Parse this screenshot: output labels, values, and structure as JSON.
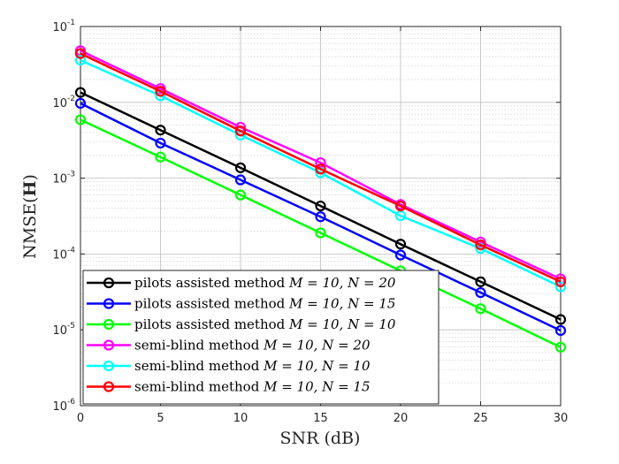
{
  "chart_data": {
    "type": "line",
    "xscale": "linear",
    "yscale": "log",
    "x": [
      0,
      5,
      10,
      15,
      20,
      25,
      30
    ],
    "xlim": [
      0,
      30
    ],
    "ylim": [
      1e-06,
      0.1
    ],
    "xticks": [
      0,
      5,
      10,
      15,
      20,
      25,
      30
    ],
    "xtick_labels": [
      "0",
      "5",
      "10",
      "15",
      "20",
      "25",
      "30"
    ],
    "yticks": [
      1e-06,
      1e-05,
      0.0001,
      0.001,
      0.01,
      0.1
    ],
    "ytick_labels": [
      {
        "base": "10",
        "exp": "-6"
      },
      {
        "base": "10",
        "exp": "-5"
      },
      {
        "base": "10",
        "exp": "-4"
      },
      {
        "base": "10",
        "exp": "-3"
      },
      {
        "base": "10",
        "exp": "-2"
      },
      {
        "base": "10",
        "exp": "-1"
      }
    ],
    "xlabel": "SNR (dB)",
    "ylabel_prefix": "NMSE(",
    "ylabel_bold": "H",
    "ylabel_suffix": ")",
    "grid": true,
    "minor_grid": true,
    "legend_position": "bottom-left",
    "marker": "circle",
    "series": [
      {
        "name": "pilots assisted method",
        "math": "M = 10, N = 20",
        "color": "#000000",
        "values": [
          0.0135,
          0.0043,
          0.00137,
          0.00043,
          0.000135,
          4.3e-05,
          1.37e-05
        ]
      },
      {
        "name": "pilots assisted method",
        "math": "M = 10, N = 15",
        "color": "#0000FF",
        "values": [
          0.0097,
          0.0029,
          0.00095,
          0.00031,
          9.7e-05,
          3.1e-05,
          9.8e-06
        ]
      },
      {
        "name": "pilots assisted method",
        "math": "M = 10, N = 10",
        "color": "#00FF00",
        "values": [
          0.0059,
          0.0019,
          0.0006,
          0.00019,
          6e-05,
          1.9e-05,
          5.9e-06
        ]
      },
      {
        "name": "semi-blind method",
        "math": "M = 10, N = 20",
        "color": "#FF00FF",
        "values": [
          0.048,
          0.0152,
          0.0047,
          0.0016,
          0.00045,
          0.000144,
          4.7e-05
        ]
      },
      {
        "name": "semi-blind method",
        "math": "M = 10, N = 10",
        "color": "#00FFFF",
        "values": [
          0.036,
          0.0122,
          0.0037,
          0.00118,
          0.00032,
          0.000118,
          3.7e-05
        ]
      },
      {
        "name": "semi-blind method",
        "math": "M = 10, N = 15",
        "color": "#FF0000",
        "values": [
          0.044,
          0.014,
          0.0042,
          0.00132,
          0.00043,
          0.000132,
          4.3e-05
        ]
      }
    ]
  }
}
